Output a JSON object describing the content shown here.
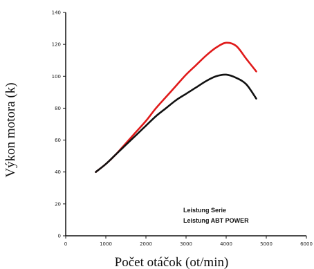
{
  "chart_data": {
    "type": "line",
    "title": "",
    "xlabel": "Počet otáčok (ot/min)",
    "ylabel": "Výkon motora (k)",
    "xlim": [
      0,
      6000
    ],
    "ylim": [
      0,
      140
    ],
    "xticks": [
      "0",
      "1000",
      "2000",
      "3000",
      "4000",
      "5000",
      "6000"
    ],
    "yticks": [
      "0",
      "20",
      "40",
      "60",
      "80",
      "100",
      "120",
      "140"
    ],
    "grid": false,
    "legend_position": "bottom-right",
    "series": [
      {
        "name": "Leistung Serie",
        "color": "#111111",
        "x": [
          750,
          1000,
          1250,
          1500,
          1750,
          2000,
          2250,
          2500,
          2750,
          3000,
          3250,
          3500,
          3750,
          4000,
          4250,
          4500,
          4750
        ],
        "y": [
          40,
          45,
          51,
          57,
          63,
          69,
          75,
          80,
          85,
          89,
          93,
          97,
          100,
          101,
          99,
          95,
          86
        ]
      },
      {
        "name": "Leistung ABT POWER",
        "color": "#e01a1a",
        "x": [
          750,
          1000,
          1250,
          1500,
          1750,
          2000,
          2250,
          2500,
          2750,
          3000,
          3250,
          3500,
          3750,
          4000,
          4250,
          4500,
          4750
        ],
        "y": [
          40,
          45,
          51,
          58,
          65,
          72,
          80,
          87,
          94,
          101,
          107,
          113,
          118,
          121,
          119,
          111,
          103
        ]
      }
    ]
  }
}
